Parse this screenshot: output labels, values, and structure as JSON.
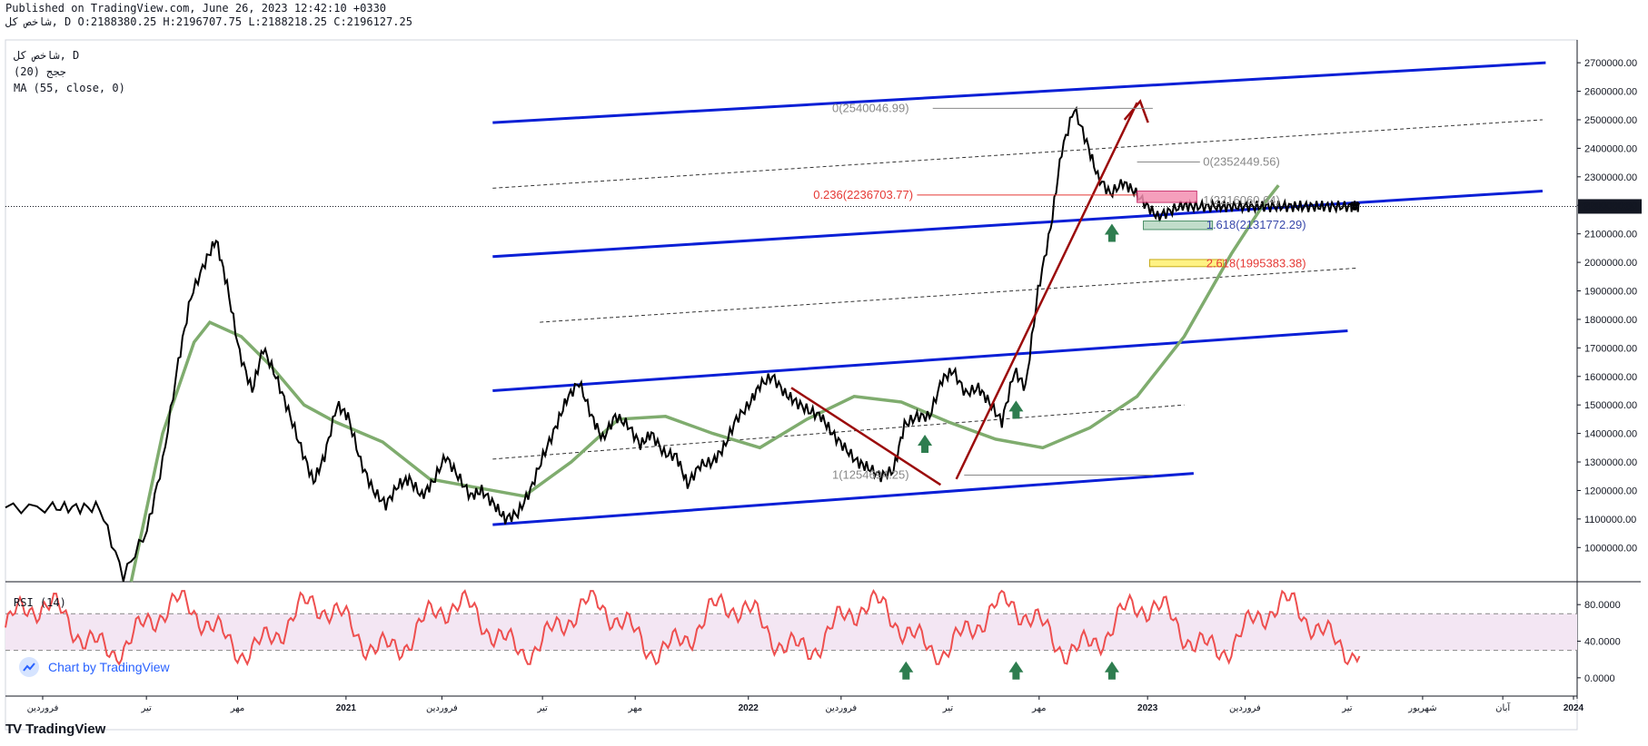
{
  "header": {
    "published": "Published on TradingView.com, June 26, 2023 12:42:10 +0330",
    "ohlc": "شاخص کل, D O:2188380.25 H:2196707.75 L:2188218.25 C:2196127.25"
  },
  "legend": {
    "symbol": "شاخص کل, D",
    "study1": "ججج (20)",
    "study2": "MA (55, close, 0)"
  },
  "rsi_label": "RSI (14)",
  "badge": {
    "text": "Chart by TradingView",
    "icon": "cloud-chart-icon"
  },
  "footer": {
    "logo": "TV",
    "brand": "TradingView"
  },
  "colors": {
    "price": "#000000",
    "ma": "#7fac6e",
    "channel": "#0a1fd6",
    "arrow": "#9b0b0b",
    "rsi": "#ee4f4f",
    "rsi_band": "#f3e6f3",
    "up_arrow": "#2e7d4f"
  },
  "chart_data": [
    {
      "type": "line",
      "title": "",
      "ylim": [
        880000,
        2780000
      ],
      "last_price_label": "2196127.25",
      "y_ticks": [
        "2700000.00",
        "2600000.00",
        "2500000.00",
        "2400000.00",
        "2300000.00",
        "2200000.00",
        "2100000.00",
        "2000000.00",
        "1900000.00",
        "1800000.00",
        "1700000.00",
        "1600000.00",
        "1500000.00",
        "1400000.00",
        "1300000.00",
        "1200000.00",
        "1100000.00",
        "1000000.00"
      ],
      "y_tick_values": [
        2700000,
        2600000,
        2500000,
        2400000,
        2300000,
        2200000,
        2100000,
        2000000,
        1900000,
        1800000,
        1700000,
        1600000,
        1500000,
        1400000,
        1300000,
        1200000,
        1100000,
        1000000
      ],
      "x_ticks": [
        "فروردین",
        "تیر",
        "مهر",
        "2021",
        "فروردین",
        "تیر",
        "مهر",
        "2022",
        "فروردین",
        "تیر",
        "مهر",
        "2023",
        "فروردین",
        "تیر",
        "شهریور",
        "آبان",
        "2024"
      ],
      "x_tick_positions": [
        0.026,
        0.092,
        0.15,
        0.219,
        0.28,
        0.344,
        0.403,
        0.475,
        0.534,
        0.602,
        0.66,
        0.729,
        0.791,
        0.856,
        0.904,
        0.955,
        1.0
      ],
      "series": [
        {
          "name": "شاخص کل",
          "x": [
            0.0,
            0.03,
            0.045,
            0.06,
            0.075,
            0.09,
            0.1,
            0.11,
            0.118,
            0.127,
            0.134,
            0.141,
            0.149,
            0.157,
            0.164,
            0.172,
            0.18,
            0.188,
            0.196,
            0.203,
            0.211,
            0.218,
            0.226,
            0.234,
            0.242,
            0.25,
            0.257,
            0.265,
            0.272,
            0.28,
            0.288,
            0.296,
            0.303,
            0.311,
            0.318,
            0.326,
            0.334,
            0.342,
            0.35,
            0.357,
            0.365,
            0.373,
            0.38,
            0.388,
            0.396,
            0.404,
            0.411,
            0.419,
            0.427,
            0.434,
            0.442,
            0.45,
            0.457,
            0.465,
            0.473,
            0.48,
            0.488,
            0.496,
            0.503,
            0.511,
            0.519,
            0.526,
            0.534,
            0.542,
            0.549,
            0.557,
            0.565,
            0.572,
            0.58,
            0.588,
            0.596,
            0.603,
            0.611,
            0.619,
            0.626,
            0.634,
            0.642,
            0.649,
            0.657,
            0.665,
            0.672,
            0.68,
            0.688,
            0.695,
            0.703,
            0.711,
            0.718,
            0.726,
            0.733,
            0.741,
            0.749,
            0.756,
            0.764,
            0.772,
            0.779,
            0.787,
            0.795,
            0.802,
            0.81,
            0.818,
            0.825,
            0.833,
            0.84,
            0.848,
            0.856,
            0.859,
            0.862,
            0.866,
            0.869,
            0.872,
            0.876,
            0.879
          ],
          "values": [
            1140000,
            1140000,
            1140000,
            1140000,
            900000,
            1060000,
            1300000,
            1650000,
            1880000,
            2000000,
            2080000,
            1920000,
            1680000,
            1550000,
            1700000,
            1600000,
            1480000,
            1350000,
            1230000,
            1320000,
            1500000,
            1460000,
            1300000,
            1200000,
            1150000,
            1220000,
            1240000,
            1180000,
            1230000,
            1320000,
            1250000,
            1180000,
            1200000,
            1150000,
            1100000,
            1120000,
            1200000,
            1320000,
            1420000,
            1520000,
            1580000,
            1460000,
            1380000,
            1460000,
            1430000,
            1360000,
            1400000,
            1330000,
            1320000,
            1220000,
            1290000,
            1300000,
            1350000,
            1450000,
            1500000,
            1570000,
            1600000,
            1540000,
            1510000,
            1480000,
            1460000,
            1400000,
            1350000,
            1300000,
            1280000,
            1250000,
            1270000,
            1430000,
            1460000,
            1460000,
            1590000,
            1620000,
            1540000,
            1560000,
            1510000,
            1440000,
            1620000,
            1560000,
            1900000,
            2120000,
            2390000,
            2540000,
            2420000,
            2300000,
            2240000,
            2280000,
            2250000,
            2200000,
            2160000,
            2180000,
            2200000,
            2196127,
            2196127,
            2196127,
            2196127,
            2196127,
            2196127,
            2196127,
            2196127,
            2196127,
            2196127,
            2196127,
            2196127,
            2196127,
            2196127,
            2196127,
            2196127,
            2196127,
            2196127,
            2196127,
            2196127,
            2196127
          ]
        }
      ],
      "annotations": {
        "fib_labels": [
          "0(2540046.99)",
          "0(2352449.56)",
          "0.236(2236703.77)",
          "1(2216060.64)",
          "1.618(2131772.29)",
          "2.618(1995383.38)",
          "1(1254694.25)"
        ]
      }
    },
    {
      "type": "line",
      "title": "RSI (14)",
      "ylim": [
        -20,
        105
      ],
      "y_ticks": [
        "80.0000",
        "40.0000",
        "0.0000"
      ],
      "y_tick_values": [
        80,
        40,
        0
      ],
      "band": [
        30,
        70
      ]
    }
  ]
}
